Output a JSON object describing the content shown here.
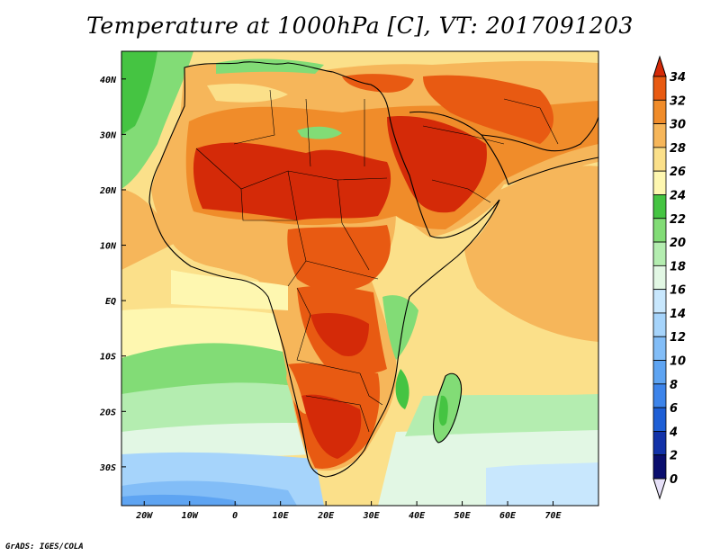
{
  "title": "Temperature at 1000hPa [C], VT: 2017091203",
  "credit": "GrADS: IGES/COLA",
  "map": {
    "lon_range": [
      -25,
      80
    ],
    "lat_range": [
      -37,
      45
    ],
    "lon_ticks": [
      {
        "value": -20,
        "label": "20W"
      },
      {
        "value": -10,
        "label": "10W"
      },
      {
        "value": 0,
        "label": "0"
      },
      {
        "value": 10,
        "label": "10E"
      },
      {
        "value": 20,
        "label": "20E"
      },
      {
        "value": 30,
        "label": "30E"
      },
      {
        "value": 40,
        "label": "40E"
      },
      {
        "value": 50,
        "label": "50E"
      },
      {
        "value": 60,
        "label": "60E"
      },
      {
        "value": 70,
        "label": "70E"
      }
    ],
    "lat_ticks": [
      {
        "value": 40,
        "label": "40N"
      },
      {
        "value": 30,
        "label": "30N"
      },
      {
        "value": 20,
        "label": "20N"
      },
      {
        "value": 10,
        "label": "10N"
      },
      {
        "value": 0,
        "label": "EQ"
      },
      {
        "value": -10,
        "label": "10S"
      },
      {
        "value": -20,
        "label": "20S"
      },
      {
        "value": -30,
        "label": "30S"
      }
    ]
  },
  "colorbar": {
    "levels": [
      "0",
      "2",
      "4",
      "6",
      "8",
      "10",
      "12",
      "14",
      "16",
      "18",
      "20",
      "22",
      "24",
      "26",
      "28",
      "30",
      "32",
      "34"
    ],
    "colors": [
      "#0a0e6e",
      "#1232a8",
      "#1e5fd6",
      "#3d84ea",
      "#5ea4f2",
      "#82bdf7",
      "#a6d4fb",
      "#c8e7fd",
      "#e2f7e4",
      "#b4edb0",
      "#82dc76",
      "#45c442",
      "#fef7b0",
      "#fbe08a",
      "#f6b65a",
      "#f08c2a",
      "#e85a12",
      "#d42a08"
    ]
  }
}
